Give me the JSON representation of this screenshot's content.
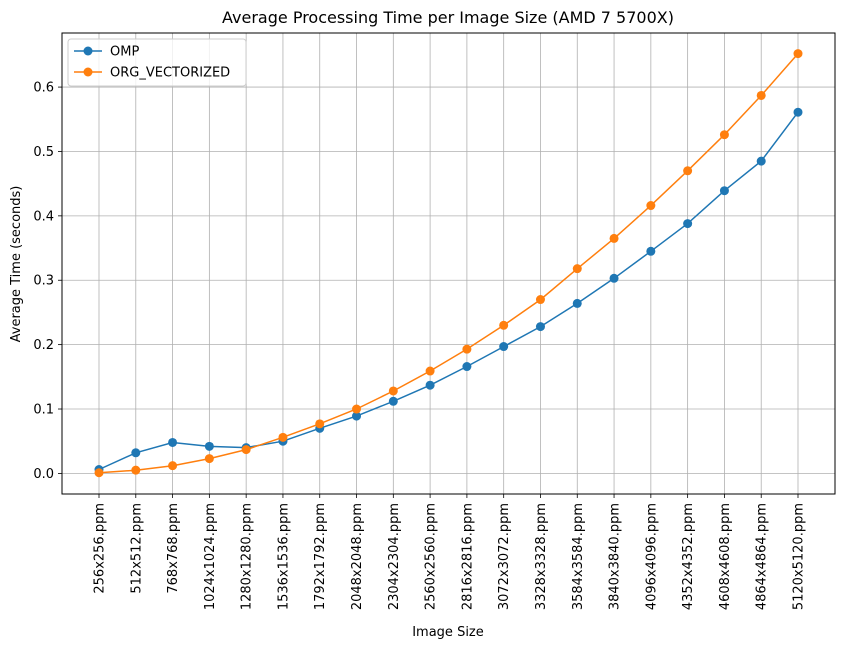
{
  "chart_data": {
    "type": "line",
    "title": "Average Processing Time per Image Size (AMD 7 5700X)",
    "xlabel": "Image Size",
    "ylabel": "Average Time (seconds)",
    "categories": [
      "256x256.ppm",
      "512x512.ppm",
      "768x768.ppm",
      "1024x1024.ppm",
      "1280x1280.ppm",
      "1536x1536.ppm",
      "1792x1792.ppm",
      "2048x2048.ppm",
      "2304x2304.ppm",
      "2560x2560.ppm",
      "2816x2816.ppm",
      "3072x3072.ppm",
      "3328x3328.ppm",
      "3584x3584.ppm",
      "3840x3840.ppm",
      "4096x4096.ppm",
      "4352x4352.ppm",
      "4608x4608.ppm",
      "4864x4864.ppm",
      "5120x5120.ppm"
    ],
    "series": [
      {
        "name": "OMP",
        "color": "#1f77b4",
        "values": [
          0.006,
          0.032,
          0.048,
          0.042,
          0.04,
          0.05,
          0.07,
          0.089,
          0.112,
          0.137,
          0.166,
          0.197,
          0.228,
          0.264,
          0.303,
          0.345,
          0.388,
          0.439,
          0.485,
          0.561
        ]
      },
      {
        "name": "ORG_VECTORIZED",
        "color": "#ff7f0e",
        "values": [
          0.001,
          0.005,
          0.012,
          0.023,
          0.037,
          0.056,
          0.077,
          0.1,
          0.128,
          0.159,
          0.193,
          0.23,
          0.27,
          0.318,
          0.365,
          0.416,
          0.47,
          0.526,
          0.587,
          0.652
        ]
      }
    ],
    "yticks": [
      "0.0",
      "0.1",
      "0.2",
      "0.3",
      "0.4",
      "0.5",
      "0.6"
    ],
    "ylim": [
      -0.032,
      0.684
    ],
    "grid": true,
    "legend_position": "top-left"
  }
}
